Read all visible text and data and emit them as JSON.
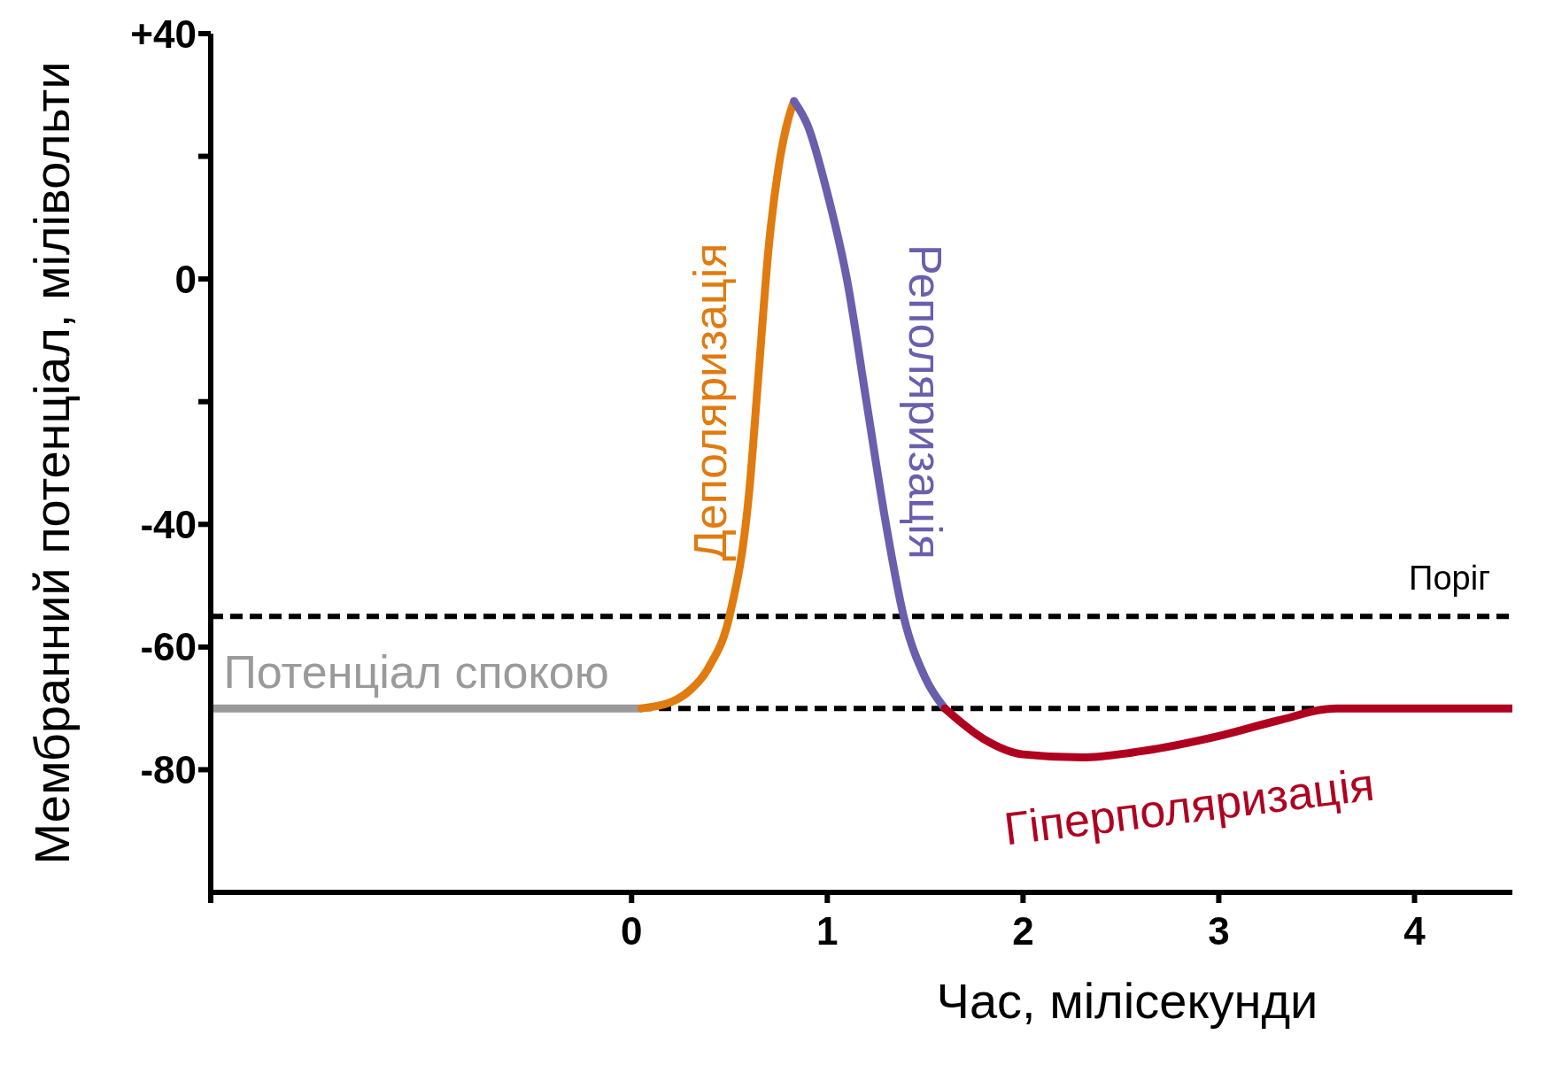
{
  "chart_data": {
    "type": "line",
    "xlabel": "Час, мілісекунди",
    "ylabel": "Мембранний потенціал, мілівольти",
    "xlim": [
      -2.15,
      4.5
    ],
    "xticks": [
      {
        "value": -2.15,
        "label": null
      },
      0,
      1,
      2,
      3,
      4
    ],
    "ylim": [
      -100,
      40
    ],
    "yticks": [
      {
        "value": 40,
        "label": "+40"
      },
      {
        "value": 20,
        "label": null
      },
      0,
      {
        "value": -20,
        "label": null
      },
      -40,
      -60,
      -80
    ],
    "legend": false,
    "marker": "none",
    "line_style": "solid",
    "series": [
      {
        "name": "Потенціал спокою",
        "color": "#9a9a9a",
        "x": [
          -2.15,
          0.05
        ],
        "values": [
          -70,
          -70
        ]
      },
      {
        "name": "Деполяризація",
        "color": "#e07b10",
        "x": [
          0.05,
          0.2,
          0.3,
          0.4,
          0.5,
          0.6,
          0.65,
          0.7,
          0.75,
          0.8,
          0.83
        ],
        "values": [
          -70,
          -69,
          -67,
          -63,
          -55,
          -35,
          -15,
          5,
          18,
          26,
          29
        ]
      },
      {
        "name": "Реполяризація",
        "color": "#6a5fad",
        "x": [
          0.83,
          0.9,
          1.0,
          1.1,
          1.2,
          1.3,
          1.39,
          1.5,
          1.6
        ],
        "values": [
          29,
          25,
          14,
          0,
          -20,
          -40,
          -55,
          -65,
          -70
        ]
      },
      {
        "name": "Гіперполяризація",
        "color": "#b00020",
        "x": [
          1.6,
          1.8,
          2.0,
          2.3,
          2.6,
          3.0,
          3.3,
          3.6,
          4.5
        ],
        "values": [
          -70,
          -75,
          -77.5,
          -78,
          -77,
          -74.5,
          -72,
          -70,
          -70
        ]
      }
    ],
    "ref_lines": [
      {
        "axis": "y",
        "value": -55,
        "label": "Поріг",
        "color": "#000000",
        "line_style": "dashed"
      },
      {
        "axis": "y",
        "value": -70,
        "color": "#000000",
        "line_style": "dashed"
      }
    ]
  }
}
